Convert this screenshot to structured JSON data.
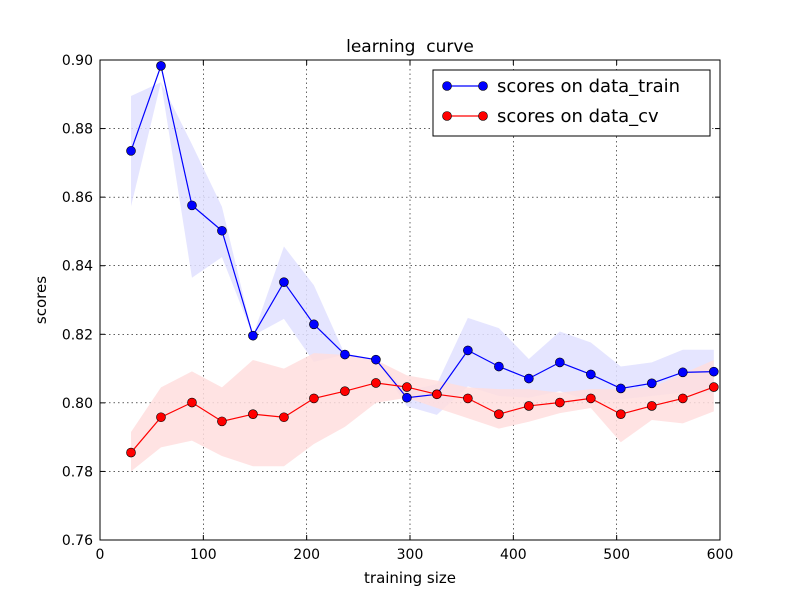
{
  "chart_data": {
    "type": "line",
    "title": "learning  curve",
    "xlabel": "training size",
    "ylabel": "scores",
    "xlim": [
      0,
      600
    ],
    "ylim": [
      0.76,
      0.9
    ],
    "xticks": [
      0,
      100,
      200,
      300,
      400,
      500,
      600
    ],
    "yticks": [
      0.76,
      0.78,
      0.8,
      0.82,
      0.84,
      0.86,
      0.88,
      0.9
    ],
    "xtick_labels": [
      "0",
      "100",
      "200",
      "300",
      "400",
      "500",
      "600"
    ],
    "ytick_labels": [
      "0.76",
      "0.78",
      "0.80",
      "0.82",
      "0.84",
      "0.86",
      "0.88",
      "0.90"
    ],
    "grid": true,
    "legend_position": "top-right",
    "x": [
      30,
      59,
      89,
      118,
      148,
      178,
      207,
      237,
      267,
      297,
      326,
      356,
      386,
      415,
      445,
      475,
      504,
      534,
      564,
      594
    ],
    "series": [
      {
        "name": "scores on data_train",
        "color": "#0000ff",
        "band_color": "#e0e0ff",
        "values": [
          0.8735,
          0.8983,
          0.8576,
          0.8502,
          0.8196,
          0.8352,
          0.8229,
          0.8141,
          0.8126,
          0.8015,
          0.8025,
          0.8153,
          0.8106,
          0.8071,
          0.8118,
          0.8083,
          0.8042,
          0.8057,
          0.8089,
          0.8091
        ],
        "upper": [
          0.8895,
          0.8935,
          0.8754,
          0.8572,
          0.8196,
          0.8456,
          0.8343,
          0.8141,
          0.8126,
          0.8035,
          0.8055,
          0.8248,
          0.8218,
          0.8128,
          0.8208,
          0.8176,
          0.8106,
          0.8118,
          0.8155,
          0.8155
        ],
        "lower": [
          0.8573,
          0.8935,
          0.8365,
          0.8425,
          0.8196,
          0.8245,
          0.8119,
          0.8141,
          0.8126,
          0.799,
          0.7965,
          0.8048,
          0.802,
          0.8015,
          0.8034,
          0.8005,
          0.801,
          0.802,
          0.803,
          0.803
        ]
      },
      {
        "name": "scores on data_cv",
        "color": "#ff0000",
        "band_color": "#ffdede",
        "values": [
          0.7855,
          0.7958,
          0.8001,
          0.7946,
          0.7967,
          0.7958,
          0.8013,
          0.8034,
          0.8058,
          0.8046,
          0.8025,
          0.8013,
          0.7967,
          0.7991,
          0.8001,
          0.8013,
          0.7967,
          0.7991,
          0.8013,
          0.8046
        ],
        "upper": [
          0.7915,
          0.8045,
          0.8092,
          0.8045,
          0.8125,
          0.81,
          0.8145,
          0.814,
          0.8125,
          0.808,
          0.8065,
          0.8045,
          0.804,
          0.804,
          0.803,
          0.804,
          0.804,
          0.8045,
          0.8085,
          0.8125
        ],
        "lower": [
          0.78,
          0.787,
          0.789,
          0.7845,
          0.7815,
          0.7815,
          0.788,
          0.793,
          0.8,
          0.8015,
          0.7985,
          0.7955,
          0.7925,
          0.7945,
          0.797,
          0.7985,
          0.7885,
          0.795,
          0.794,
          0.7975
        ]
      }
    ]
  }
}
